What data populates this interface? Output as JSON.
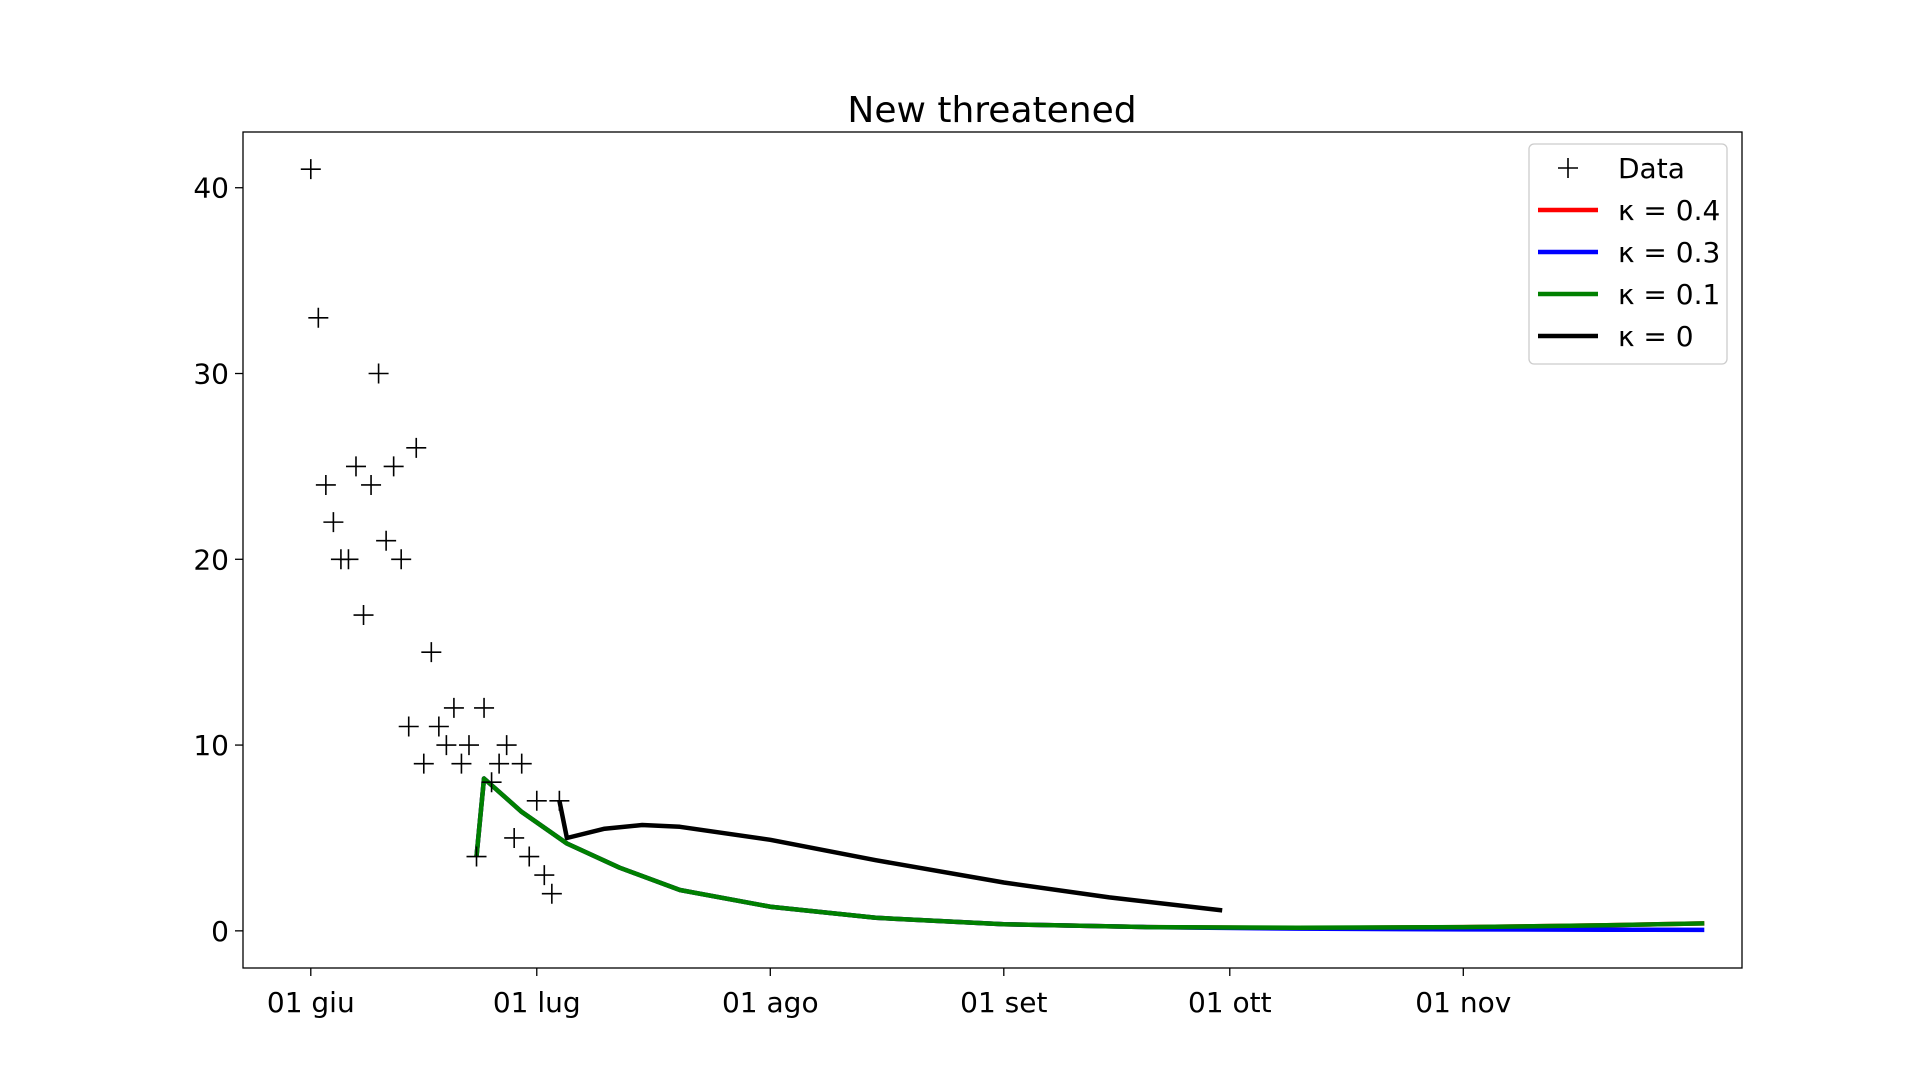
{
  "chart_data": {
    "type": "line",
    "title": "New threatened",
    "xlabel": "",
    "ylabel": "",
    "x_ticks": [
      "01 giu",
      "01 lug",
      "01 ago",
      "01 set",
      "01 ott",
      "01 nov"
    ],
    "x_tick_dates": [
      "2020-06-01",
      "2020-07-01",
      "2020-08-01",
      "2020-09-01",
      "2020-10-01",
      "2020-11-01"
    ],
    "xlim": [
      "2020-05-23",
      "2020-12-08"
    ],
    "y_ticks": [
      0,
      10,
      20,
      30,
      40
    ],
    "ylim": [
      -2,
      43
    ],
    "grid": false,
    "legend_position": "top-right",
    "legend": [
      {
        "label": "Data",
        "kind": "marker",
        "color": "#000000"
      },
      {
        "label": "κ = 0.4",
        "kind": "line",
        "color": "#ff0000"
      },
      {
        "label": "κ = 0.3",
        "kind": "line",
        "color": "#0000ff"
      },
      {
        "label": "κ = 0.1",
        "kind": "line",
        "color": "#008000"
      },
      {
        "label": "κ = 0",
        "kind": "line",
        "color": "#000000"
      }
    ],
    "scatter": {
      "name": "Data",
      "points": [
        [
          "2020-06-01",
          41
        ],
        [
          "2020-06-02",
          33
        ],
        [
          "2020-06-03",
          24
        ],
        [
          "2020-06-04",
          22
        ],
        [
          "2020-06-05",
          20
        ],
        [
          "2020-06-06",
          20
        ],
        [
          "2020-06-07",
          25
        ],
        [
          "2020-06-08",
          17
        ],
        [
          "2020-06-09",
          24
        ],
        [
          "2020-06-10",
          30
        ],
        [
          "2020-06-11",
          21
        ],
        [
          "2020-06-12",
          25
        ],
        [
          "2020-06-13",
          20
        ],
        [
          "2020-06-14",
          11
        ],
        [
          "2020-06-15",
          26
        ],
        [
          "2020-06-16",
          9
        ],
        [
          "2020-06-17",
          15
        ],
        [
          "2020-06-18",
          11
        ],
        [
          "2020-06-19",
          10
        ],
        [
          "2020-06-20",
          12
        ],
        [
          "2020-06-21",
          9
        ],
        [
          "2020-06-22",
          10
        ],
        [
          "2020-06-23",
          4
        ],
        [
          "2020-06-24",
          12
        ],
        [
          "2020-06-25",
          8
        ],
        [
          "2020-06-26",
          9
        ],
        [
          "2020-06-27",
          10
        ],
        [
          "2020-06-28",
          5
        ],
        [
          "2020-06-29",
          9
        ],
        [
          "2020-06-30",
          4
        ],
        [
          "2020-07-01",
          7
        ],
        [
          "2020-07-02",
          3
        ],
        [
          "2020-07-03",
          2
        ],
        [
          "2020-07-04",
          7
        ]
      ]
    },
    "series": [
      {
        "name": "κ = 0.4",
        "color": "#ff0000",
        "points": [
          [
            "2020-06-23",
            4
          ],
          [
            "2020-06-24",
            8.2
          ],
          [
            "2020-06-29",
            6.4
          ],
          [
            "2020-07-05",
            4.7
          ],
          [
            "2020-07-12",
            3.4
          ],
          [
            "2020-07-20",
            2.2
          ],
          [
            "2020-08-01",
            1.3
          ],
          [
            "2020-08-15",
            0.7
          ],
          [
            "2020-09-01",
            0.35
          ],
          [
            "2020-09-20",
            0.2
          ],
          [
            "2020-10-10",
            0.15
          ],
          [
            "2020-11-01",
            0.2
          ],
          [
            "2020-11-20",
            0.3
          ],
          [
            "2020-12-03",
            0.4
          ]
        ]
      },
      {
        "name": "κ = 0.3",
        "color": "#0000ff",
        "points": [
          [
            "2020-06-23",
            4
          ],
          [
            "2020-06-24",
            8.2
          ],
          [
            "2020-06-29",
            6.4
          ],
          [
            "2020-07-05",
            4.7
          ],
          [
            "2020-07-12",
            3.4
          ],
          [
            "2020-07-20",
            2.2
          ],
          [
            "2020-08-01",
            1.3
          ],
          [
            "2020-08-15",
            0.7
          ],
          [
            "2020-09-01",
            0.35
          ],
          [
            "2020-09-20",
            0.2
          ],
          [
            "2020-10-10",
            0.12
          ],
          [
            "2020-11-01",
            0.08
          ],
          [
            "2020-11-20",
            0.06
          ],
          [
            "2020-12-03",
            0.05
          ]
        ]
      },
      {
        "name": "κ = 0.1",
        "color": "#008000",
        "points": [
          [
            "2020-06-23",
            4
          ],
          [
            "2020-06-24",
            8.2
          ],
          [
            "2020-06-29",
            6.4
          ],
          [
            "2020-07-05",
            4.7
          ],
          [
            "2020-07-12",
            3.4
          ],
          [
            "2020-07-20",
            2.2
          ],
          [
            "2020-08-01",
            1.3
          ],
          [
            "2020-08-15",
            0.7
          ],
          [
            "2020-09-01",
            0.35
          ],
          [
            "2020-09-20",
            0.2
          ],
          [
            "2020-10-10",
            0.17
          ],
          [
            "2020-11-01",
            0.2
          ],
          [
            "2020-11-20",
            0.3
          ],
          [
            "2020-12-03",
            0.4
          ]
        ]
      },
      {
        "name": "κ = 0",
        "color": "#000000",
        "points": [
          [
            "2020-07-04",
            7
          ],
          [
            "2020-07-05",
            5
          ],
          [
            "2020-07-10",
            5.5
          ],
          [
            "2020-07-15",
            5.7
          ],
          [
            "2020-07-20",
            5.6
          ],
          [
            "2020-08-01",
            4.9
          ],
          [
            "2020-08-15",
            3.8
          ],
          [
            "2020-09-01",
            2.6
          ],
          [
            "2020-09-15",
            1.8
          ],
          [
            "2020-09-30",
            1.1
          ]
        ]
      }
    ]
  }
}
